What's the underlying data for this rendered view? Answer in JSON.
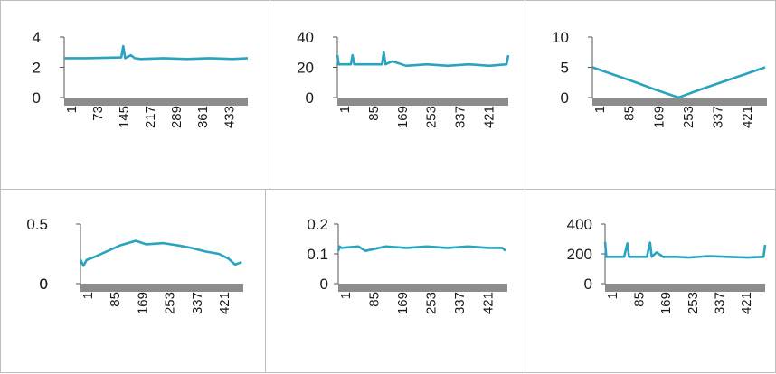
{
  "chart_data": [
    {
      "type": "line",
      "ylim": [
        0,
        4
      ],
      "yticks": [
        "4",
        "2",
        "0"
      ],
      "yvalues": [
        4,
        2,
        0
      ],
      "xticklabels": [
        "1",
        "73",
        "145",
        "217",
        "289",
        "361",
        "433"
      ],
      "series": [
        {
          "x": [
            1,
            60,
            150,
            155,
            160,
            175,
            185,
            200,
            260,
            320,
            380,
            440,
            480
          ],
          "values": [
            2.6,
            2.6,
            2.65,
            3.4,
            2.6,
            2.8,
            2.6,
            2.55,
            2.6,
            2.55,
            2.6,
            2.55,
            2.6
          ]
        }
      ],
      "color": "#2aa3c0"
    },
    {
      "type": "line",
      "ylim": [
        0,
        40
      ],
      "yticks": [
        "40",
        "20",
        "0"
      ],
      "yvalues": [
        40,
        20,
        0
      ],
      "xticklabels": [
        "1",
        "85",
        "169",
        "253",
        "337",
        "421"
      ],
      "series": [
        {
          "x": [
            1,
            5,
            10,
            40,
            45,
            50,
            100,
            130,
            135,
            140,
            160,
            200,
            260,
            320,
            380,
            440,
            490,
            495
          ],
          "values": [
            28,
            22,
            22,
            22,
            28,
            22,
            22,
            22,
            30,
            22,
            24,
            21,
            22,
            21,
            22,
            21,
            22,
            28
          ]
        }
      ],
      "color": "#2aa3c0"
    },
    {
      "type": "line",
      "ylim": [
        0,
        10
      ],
      "yticks": [
        "10",
        "5",
        "0"
      ],
      "yvalues": [
        10,
        5,
        0
      ],
      "xticklabels": [
        "1",
        "85",
        "169",
        "253",
        "337",
        "421"
      ],
      "series": [
        {
          "x": [
            1,
            60,
            120,
            180,
            245,
            300,
            360,
            420,
            490
          ],
          "values": [
            5,
            3.8,
            2.6,
            1.3,
            0,
            1.2,
            2.4,
            3.6,
            5
          ]
        }
      ],
      "color": "#2aa3c0"
    },
    {
      "type": "line",
      "ylim": [
        0,
        0.5
      ],
      "yticks": [
        "0.5",
        "0",
        "0"
      ],
      "yvalues": [
        0.5,
        0,
        0
      ],
      "xticklabels": [
        "1",
        "85",
        "169",
        "253",
        "337",
        "421"
      ],
      "series": [
        {
          "x": [
            1,
            10,
            20,
            40,
            80,
            120,
            169,
            200,
            253,
            300,
            337,
            380,
            421,
            450,
            470,
            490
          ],
          "values": [
            0.2,
            0.15,
            0.2,
            0.22,
            0.27,
            0.32,
            0.36,
            0.33,
            0.34,
            0.32,
            0.3,
            0.27,
            0.25,
            0.21,
            0.16,
            0.18
          ]
        }
      ],
      "color": "#2aa3c0"
    },
    {
      "type": "line",
      "ylim": [
        0,
        0.2
      ],
      "yticks": [
        "0.2",
        "0.1",
        "0"
      ],
      "yvalues": [
        0.2,
        0.1,
        0
      ],
      "xticklabels": [
        "1",
        "85",
        "169",
        "253",
        "337",
        "421"
      ],
      "series": [
        {
          "x": [
            1,
            5,
            10,
            60,
            80,
            140,
            200,
            260,
            320,
            380,
            440,
            480,
            490
          ],
          "values": [
            0.11,
            0.125,
            0.12,
            0.125,
            0.11,
            0.125,
            0.12,
            0.125,
            0.12,
            0.125,
            0.12,
            0.12,
            0.11
          ]
        }
      ],
      "color": "#2aa3c0"
    },
    {
      "type": "line",
      "ylim": [
        0,
        400
      ],
      "yticks": [
        "400",
        "200",
        "0"
      ],
      "yvalues": [
        400,
        200,
        0
      ],
      "xticklabels": [
        "1",
        "85",
        "169",
        "253",
        "337",
        "421"
      ],
      "series": [
        {
          "x": [
            1,
            5,
            15,
            60,
            70,
            75,
            130,
            140,
            145,
            160,
            180,
            220,
            260,
            320,
            380,
            440,
            490,
            495
          ],
          "values": [
            280,
            180,
            180,
            180,
            270,
            180,
            180,
            275,
            180,
            210,
            180,
            180,
            175,
            185,
            180,
            175,
            180,
            260
          ]
        }
      ],
      "color": "#2aa3c0"
    }
  ]
}
